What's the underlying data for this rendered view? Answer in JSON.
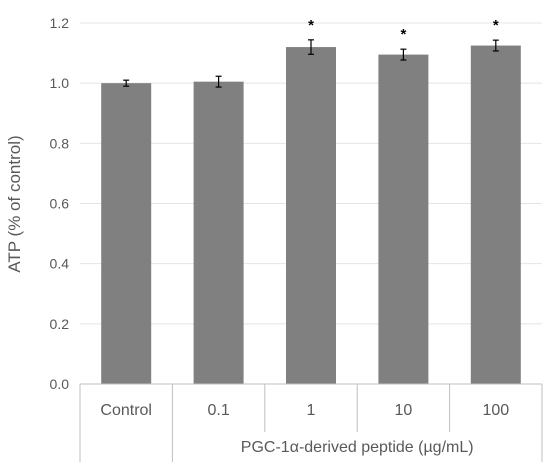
{
  "chart_data": {
    "type": "bar",
    "categories": [
      "Control",
      "0.1",
      "1",
      "10",
      "100"
    ],
    "values": [
      1.0,
      1.005,
      1.12,
      1.095,
      1.125
    ],
    "errors": [
      0.01,
      0.018,
      0.024,
      0.018,
      0.018
    ],
    "significance": [
      "",
      "",
      "*",
      "*",
      "*"
    ],
    "group_label": "PGC-1α-derived peptide (µg/mL)",
    "group_categories": [
      "0.1",
      "1",
      "10",
      "100"
    ],
    "ylabel": "ATP (% of control)",
    "xlabel": "",
    "ylim": [
      0,
      1.2
    ],
    "yticks": [
      "0.0",
      "0.2",
      "0.4",
      "0.6",
      "0.8",
      "1.0",
      "1.2"
    ],
    "grid": true,
    "bar_color": "#808080"
  }
}
